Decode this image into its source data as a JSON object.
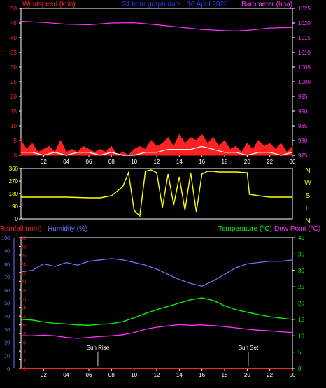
{
  "header": {
    "left": "Windspeed (kph)",
    "center": "24 hour graph data : 16 April 2026",
    "right": "Barometer (hpa)"
  },
  "lower_header": {
    "rainfall": "Rainfall (mm)",
    "humidity": "Humidity (%)",
    "temperature": "Temperature (°C)",
    "dewpoint": "Dew Point (°C)"
  },
  "colors": {
    "background": "#000000",
    "frame": "#ffffff",
    "wind_left_axis": "#ff2222",
    "baro_axis": "#ff33ff",
    "humidity": "#7070ff",
    "temperature": "#00ff00",
    "dewpoint": "#ff33ff",
    "rainfall": "#ff2222",
    "winddir": "#ffff00",
    "compass": "#ffff00",
    "sun_text": "#ffffff"
  },
  "chart_data": [
    {
      "id": "wind_baro",
      "type": "line",
      "title": "24 hour graph data : 16 April 2026",
      "x_ticks": [
        "02",
        "04",
        "06",
        "08",
        "10",
        "12",
        "14",
        "16",
        "18",
        "20",
        "22",
        "00"
      ],
      "ylabel_left": "Windspeed (kph)",
      "ylim_left": [
        0,
        50
      ],
      "yticks_left": [
        0,
        5,
        10,
        15,
        20,
        25,
        30,
        35,
        40,
        45,
        50
      ],
      "ylabel_right": "Barometer (hpa)",
      "ylim_right": [
        975,
        1025
      ],
      "yticks_right": [
        975,
        980,
        985,
        990,
        995,
        1000,
        1005,
        1010,
        1015,
        1020,
        1025
      ],
      "series": [
        {
          "name": "Barometer (hpa)",
          "axis": "right",
          "color": "#ff33ff",
          "x": [
            0,
            2,
            4,
            6,
            8,
            10,
            12,
            14,
            16,
            18,
            19,
            20,
            22,
            24
          ],
          "values": [
            1020.6,
            1020.2,
            1019.6,
            1019.4,
            1020.0,
            1020.1,
            1019.4,
            1018.6,
            1017.8,
            1017.4,
            1017.3,
            1017.5,
            1018.3,
            1018.5
          ]
        },
        {
          "name": "Windspeed (kph)",
          "axis": "left",
          "color": "#ff2222",
          "x": [
            0,
            0.5,
            1,
            1.5,
            2,
            2.5,
            3,
            3.5,
            4,
            4.5,
            5,
            5.5,
            6,
            6.5,
            7,
            7.5,
            8,
            8.5,
            9,
            9.5,
            10,
            10.5,
            11,
            11.5,
            12,
            12.5,
            13,
            13.5,
            14,
            14.5,
            15,
            15.5,
            16,
            16.5,
            17,
            17.5,
            18,
            18.5,
            19,
            19.5,
            20,
            20.5,
            21,
            21.5,
            22,
            22.5,
            23,
            23.5,
            24
          ],
          "values": [
            5,
            2,
            4,
            1,
            2,
            3,
            1,
            5,
            1,
            2,
            1,
            3,
            2,
            1,
            2,
            1,
            3,
            0,
            1,
            0,
            2,
            3,
            2,
            5,
            3,
            4,
            6,
            3,
            7,
            4,
            6,
            5,
            7,
            4,
            6,
            3,
            5,
            2,
            3,
            1,
            4,
            2,
            5,
            3,
            4,
            2,
            4,
            1,
            3
          ]
        },
        {
          "name": "Gust (kph)",
          "axis": "left",
          "color": "#ffffff",
          "x": [
            0,
            1,
            2,
            3,
            4,
            5,
            6,
            7,
            8,
            9,
            10,
            11,
            12,
            13,
            14,
            15,
            16,
            17,
            18,
            19,
            20,
            21,
            22,
            23,
            24
          ],
          "values": [
            1,
            1,
            0,
            1,
            0,
            1,
            1,
            0,
            1,
            0,
            0,
            1,
            1,
            2,
            2,
            2,
            3,
            2,
            1,
            1,
            0,
            1,
            1,
            0,
            1
          ]
        }
      ]
    },
    {
      "id": "winddir",
      "type": "line",
      "ylim": [
        0,
        360
      ],
      "yticks": [
        0,
        90,
        180,
        270,
        360
      ],
      "compass": [
        "N",
        "W",
        "S",
        "E",
        "N"
      ],
      "series": [
        {
          "name": "Wind Direction",
          "color": "#ffff00",
          "x": [
            0,
            2,
            4,
            6,
            7,
            8,
            9,
            9.5,
            10,
            10.5,
            11,
            11.5,
            12,
            12.5,
            13,
            13.5,
            14,
            14.5,
            15,
            15.5,
            16,
            16.5,
            17,
            17.5,
            18,
            19,
            20,
            20.2,
            21,
            22,
            24
          ],
          "values": [
            155,
            155,
            155,
            150,
            150,
            165,
            230,
            330,
            60,
            20,
            340,
            350,
            330,
            80,
            320,
            100,
            300,
            60,
            330,
            50,
            320,
            340,
            340,
            335,
            335,
            335,
            330,
            175,
            165,
            155,
            155
          ]
        }
      ]
    },
    {
      "id": "temp_hum",
      "type": "line",
      "x_ticks": [
        "02",
        "04",
        "06",
        "08",
        "10",
        "12",
        "14",
        "16",
        "18",
        "20",
        "22",
        "00"
      ],
      "ylabel_left_outer": "Rainfall (mm)",
      "ylim_left_outer": [
        0,
        30
      ],
      "yticks_left_outer": [
        0,
        2,
        4,
        6,
        8,
        10,
        12,
        14,
        16,
        18,
        20,
        22,
        24,
        26,
        28,
        30
      ],
      "ylabel_left_inner": "Humidity (%)",
      "ylim_left_inner": [
        0,
        100
      ],
      "yticks_left_inner": [
        0,
        10,
        20,
        30,
        40,
        50,
        60,
        70,
        80,
        90,
        100
      ],
      "ylabel_right": "Temperature (°C)",
      "ylim_right": [
        0,
        40
      ],
      "yticks_right": [
        0,
        5,
        10,
        15,
        20,
        25,
        30,
        35,
        40
      ],
      "annotations": [
        {
          "text": "Sun Rise",
          "x": 6.8
        },
        {
          "text": "Sun Set",
          "x": 20.1
        }
      ],
      "series": [
        {
          "name": "Humidity (%)",
          "axis": "left_inner",
          "color": "#7070ff",
          "x": [
            0,
            1,
            2,
            3,
            4,
            5,
            6,
            7,
            8,
            9,
            10,
            11,
            12,
            13,
            14,
            15,
            16,
            17,
            18,
            19,
            20,
            21,
            22,
            23,
            24
          ],
          "values": [
            74,
            75,
            80,
            78,
            81,
            79,
            82,
            83,
            84,
            83,
            81,
            79,
            76,
            72,
            68,
            65,
            63,
            67,
            72,
            77,
            80,
            81,
            82,
            82,
            83
          ]
        },
        {
          "name": "Temperature (°C)",
          "axis": "right",
          "color": "#00ff00",
          "x": [
            0,
            1,
            2,
            3,
            4,
            5,
            6,
            7,
            8,
            9,
            10,
            11,
            12,
            13,
            14,
            15,
            16,
            17,
            18,
            19,
            20,
            21,
            22,
            23,
            24
          ],
          "values": [
            15,
            14.8,
            14.2,
            13.8,
            13.6,
            13.3,
            13.2,
            13.5,
            13.7,
            14.3,
            15.5,
            16.8,
            18,
            19,
            20,
            21,
            21.6,
            20.8,
            19.2,
            18,
            17.2,
            16.5,
            15.8,
            15.4,
            15
          ]
        },
        {
          "name": "Dew Point (°C)",
          "axis": "right",
          "color": "#ff33ff",
          "x": [
            0,
            1,
            2,
            3,
            4,
            5,
            6,
            7,
            8,
            9,
            10,
            11,
            12,
            13,
            14,
            15,
            16,
            17,
            18,
            19,
            20,
            21,
            22,
            23,
            24
          ],
          "values": [
            10,
            10,
            10.2,
            10,
            9.5,
            9.2,
            9.5,
            9.8,
            10,
            10.3,
            11,
            12,
            12.6,
            13,
            13.4,
            13.2,
            13.3,
            13.1,
            12.8,
            12.4,
            12,
            11.7,
            11.5,
            11.2,
            11
          ]
        },
        {
          "name": "Rainfall (mm)",
          "axis": "left_outer",
          "color": "#ff2222",
          "x": [
            0,
            24
          ],
          "values": [
            0,
            0
          ]
        }
      ]
    }
  ]
}
